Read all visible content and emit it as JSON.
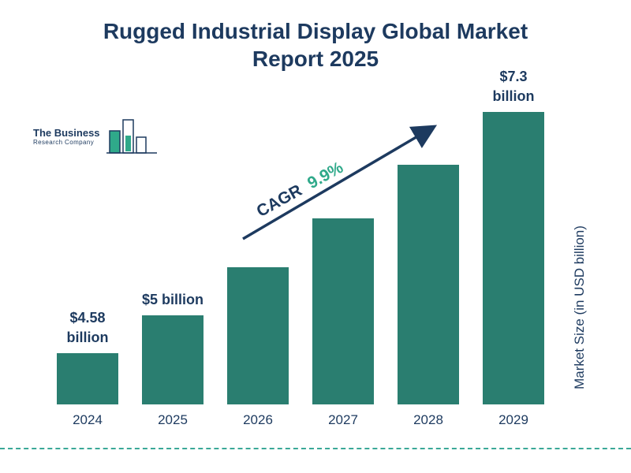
{
  "logo": {
    "line1": "The Business",
    "line2": "Research Company"
  },
  "chart_data": {
    "type": "bar",
    "title": "Rugged Industrial Display Global Market Report 2025",
    "categories": [
      "2024",
      "2025",
      "2026",
      "2027",
      "2028",
      "2029"
    ],
    "values": [
      4.58,
      5.0,
      5.55,
      6.1,
      6.7,
      7.3
    ],
    "value_labels": [
      "$4.58 billion",
      "$5 billion",
      "",
      "",
      "",
      "$7.3 billion"
    ],
    "ylabel": "Market Size (in USD billion)",
    "ylim": [
      4.0,
      7.5
    ],
    "grid": false,
    "legend": "none",
    "bar_color": "#2a7e70",
    "annotation": {
      "label": "CAGR",
      "value": "9.9%"
    }
  },
  "colors": {
    "navy": "#1d3a5f",
    "teal_bar": "#2a7e70",
    "cagr_green": "#2fa98a",
    "dashed_line": "#3aa898"
  }
}
